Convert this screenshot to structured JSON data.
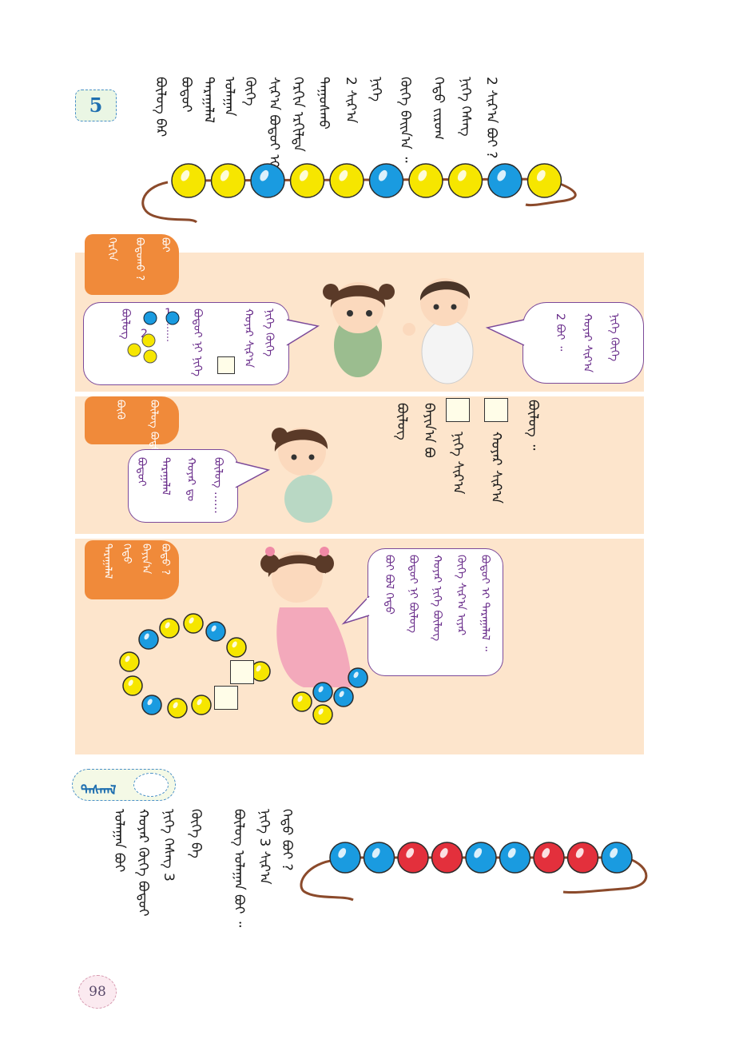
{
  "page": {
    "number": "98"
  },
  "problem": {
    "number": "5",
    "text_cols": [
      "ᠪᠦᠯᠦᠭ ᠪᠡᠷ",
      "ᠪᠣᠳᠣᠶ",
      "ᠳᠠᠷᠠᠭᠠᠯᠠᠯ",
      "ᠤᠯᠠᠭᠠᠨ",
      "ᠬᠥᠬᠡ",
      "ᠰᠢᠷ᠎ᠠ ᠪᠣᠳᠣᠶ ᠢ",
      "ᠬᠡᠷᠬᠢᠨ ᠡᠷᠭᠢᠯᠳᠡ",
      "ᠳᠠᠭᠤᠰᠬᠤ",
      "2 ᠰᠢᠷ᠎ᠠ",
      "ᠨᠢᠭᠡ",
      "ᠬᠥᠬᠡ ᠪᠠᠢᠨ᠎ᠠ ᠃",
      "ᠬᠡᠳᠦ ᠵᠢᠷᠤᠭ",
      "ᠨᠢᠭᠡ ᠬᠡᠰᠡᠭ",
      "2 ᠰᠢᠷ᠎ᠠ ᠪᠤᠢ ?"
    ]
  },
  "bead_rows": {
    "top": [
      "yellow",
      "yellow",
      "blue",
      "yellow",
      "yellow",
      "blue",
      "yellow",
      "yellow",
      "blue",
      "yellow"
    ],
    "bottom": [
      "blue",
      "blue",
      "red",
      "red",
      "blue",
      "blue",
      "red",
      "red",
      "blue"
    ]
  },
  "colors": {
    "yellow": "#f6e600",
    "blue": "#1a9be0",
    "red": "#e3303c",
    "orange_tab": "#f08a3a",
    "panel": "#fde5cc",
    "purple": "#6b2f8c",
    "string": "#8b4a2b"
  },
  "section1": {
    "tab_lines": [
      "ᠬᠡᠷᠬᠢᠨ",
      "ᠪᠣᠳᠣᠬᠤ ?",
      "ᠪᠤᠢ"
    ],
    "left_bubble": {
      "lines": [
        "ᠨᠢᠭᠡ ᠬᠥᠬᠡ",
        "ᠬᠣᠶᠠᠷ ᠰᠢᠷ᠎ᠠ",
        "ᠪᠣᠳᠣᠶ ᠨᠢ ᠨᠢᠭᠡ",
        "ᠪᠦᠯᠦᠭ"
      ],
      "seq_1": "1",
      "seq_dots": "……",
      "seq_2": "2"
    },
    "right_bubble": {
      "lines": [
        "ᠨᠢᠭᠡ ᠬᠥᠬᠡ",
        "ᠬᠣᠶᠠᠷ ᠰᠢᠷ᠎ᠠ",
        "2 ᠪᠤᠢ ᠃"
      ]
    }
  },
  "section2": {
    "tab_lines": [
      "ᠪᠦᠯᠦᠭ ᠪᠣᠳᠣ ?",
      "ᠪᠦᠬᠦ"
    ],
    "bubble": {
      "lines": [
        "ᠪᠣᠳᠣᠶ",
        "ᠳᠠᠷᠠᠭᠠᠯᠠᠯ",
        "ᠬᠣᠶᠠᠷ ᠳᠤ",
        "ᠪᠦᠯᠦᠭ ……"
      ]
    },
    "text_cols": [
      "ᠪᠦᠯᠦᠭ ᠃",
      "ᠬᠣᠶᠠᠷ ᠰᠢᠷ᠎ᠠ",
      "ᠨᠢᠭᠡ ᠰᠢᠷ᠎ᠠ",
      "ᠪᠠᠶᠢᠨ᠎ᠠ ᠪᠣ",
      "ᠪᠦᠯᠦᠭ"
    ]
  },
  "section3": {
    "tab_lines": [
      "ᠪᠣᠳᠣ ?",
      "ᠪᠠᠶᠢᠨ᠎ᠠ",
      "ᠬᠡᠳᠦ",
      "ᠳᠠᠷᠠᠭᠠᠯᠠᠯ"
    ],
    "bubble": {
      "lines": [
        "ᠪᠣᠳᠣᠶ ᠢ ᠳᠠᠷᠠᠭᠠᠯᠠᠯ ᠃",
        "ᠬᠥᠬᠡ ᠰᠢᠷ᠎ᠠ ᠢᠶᠡᠷ",
        "ᠬᠣᠶᠠᠷ ᠨᠢᠭᠡ ᠪᠦᠯᠦᠭ",
        "ᠪᠣᠳᠣᠶ ᠨᠢ ᠪᠦᠯᠦᠭ",
        "ᠪᠤᠢ ᠪᠣᠯ ᠬᠡᠳᠦ"
      ]
    }
  },
  "exercise": {
    "label": "ᠳᠠᠰᠬᠠᠯ",
    "text_cols": [
      "ᠬᠡᠳᠦ ᠪᠤᠢ ?",
      "ᠨᠢᠭᠡ 3 ᠰᠢᠷ᠎ᠠ",
      "ᠪᠦᠯᠦᠭ ᠤᠯᠠᠭᠠᠨ ᠪᠤᠢ ᠃",
      "ᠬᠥᠬᠡ ᠪᠠ",
      "ᠨᠢᠭᠡ ᠬᠡᠰᠡᠭ 3",
      "ᠬᠣᠶᠠᠷ ᠬᠥᠬᠡ ᠪᠣᠳᠣᠶ",
      "ᠤᠯᠠᠭᠠᠨ ᠪᠤᠢ"
    ]
  }
}
